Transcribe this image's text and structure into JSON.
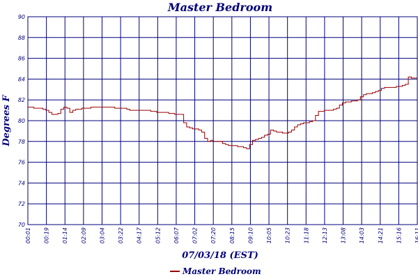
{
  "chart_data": {
    "type": "line",
    "title": "Master Bedroom",
    "xlabel": "07/03/18 (EST)",
    "ylabel": "Degrees F",
    "ylim": [
      70,
      90
    ],
    "yticks": [
      "70",
      "72",
      "74",
      "76",
      "78",
      "80",
      "82",
      "84",
      "86",
      "88",
      "90"
    ],
    "xticks": [
      "00:01",
      "00:19",
      "01:14",
      "02:09",
      "03:04",
      "03:22",
      "04:17",
      "05:12",
      "06:07",
      "07:02",
      "07:20",
      "08:15",
      "09:10",
      "10:05",
      "10:23",
      "11:18",
      "12:13",
      "13:08",
      "14:03",
      "14:21",
      "15:16",
      "16:11"
    ],
    "grid": true,
    "legend_position": "bottom",
    "series": [
      {
        "name": "Master Bedroom",
        "color": "#990000",
        "values": [
          81.3,
          81.3,
          81.2,
          81.2,
          81.2,
          81.1,
          81.0,
          80.8,
          80.6,
          80.6,
          80.7,
          81.1,
          81.3,
          81.2,
          80.8,
          81.0,
          81.1,
          81.1,
          81.2,
          81.2,
          81.2,
          81.3,
          81.3,
          81.3,
          81.3,
          81.3,
          81.3,
          81.3,
          81.3,
          81.2,
          81.2,
          81.2,
          81.2,
          81.1,
          81.0,
          81.0,
          81.0,
          81.0,
          81.0,
          81.0,
          81.0,
          80.9,
          80.9,
          80.8,
          80.8,
          80.8,
          80.8,
          80.7,
          80.7,
          80.6,
          80.6,
          80.6,
          79.8,
          79.4,
          79.3,
          79.2,
          79.2,
          79.1,
          78.9,
          78.3,
          78.0,
          78.1,
          78.0,
          78.0,
          78.0,
          77.8,
          77.7,
          77.6,
          77.6,
          77.6,
          77.5,
          77.5,
          77.4,
          77.3,
          77.7,
          78.1,
          78.2,
          78.3,
          78.4,
          78.6,
          78.7,
          79.1,
          79.0,
          78.9,
          78.9,
          78.8,
          78.8,
          78.9,
          79.1,
          79.4,
          79.6,
          79.7,
          79.8,
          79.8,
          79.9,
          80.0,
          80.5,
          80.9,
          80.9,
          81.0,
          81.0,
          81.0,
          81.1,
          81.2,
          81.5,
          81.7,
          81.8,
          81.8,
          81.9,
          81.9,
          82.0,
          82.3,
          82.5,
          82.6,
          82.6,
          82.7,
          82.8,
          82.9,
          83.1,
          83.2,
          83.2,
          83.2,
          83.2,
          83.3,
          83.3,
          83.4,
          83.5,
          84.2,
          84.1,
          84.1,
          84.1
        ]
      }
    ]
  }
}
